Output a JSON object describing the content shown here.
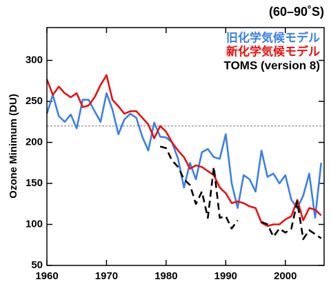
{
  "chart_data": {
    "type": "line",
    "title": "(60–90˚S)",
    "y_label": "Ozone Minimum (DU)",
    "x": [
      1960,
      1961,
      1962,
      1963,
      1964,
      1965,
      1966,
      1967,
      1968,
      1969,
      1970,
      1971,
      1972,
      1973,
      1974,
      1975,
      1976,
      1977,
      1978,
      1979,
      1980,
      1981,
      1982,
      1983,
      1984,
      1985,
      1986,
      1987,
      1988,
      1989,
      1990,
      1991,
      1992,
      1993,
      1994,
      1995,
      1996,
      1997,
      1998,
      1999,
      2000,
      2001,
      2002,
      2003,
      2004,
      2005,
      2006
    ],
    "series": [
      {
        "name": "旧化学気候モデル",
        "color": "#3a7fe8",
        "dash": false,
        "values": [
          235,
          258,
          232,
          225,
          234,
          217,
          252,
          252,
          238,
          225,
          260,
          240,
          210,
          228,
          235,
          230,
          207,
          190,
          224,
          207,
          206,
          200,
          180,
          145,
          175,
          155,
          188,
          192,
          182,
          180,
          210,
          150,
          120,
          160,
          155,
          140,
          190,
          158,
          162,
          150,
          160,
          130,
          120,
          135,
          162,
          108,
          175
        ]
      },
      {
        "name": "新化学気候モデル",
        "color": "#e81010",
        "dash": false,
        "values": [
          277,
          258,
          268,
          260,
          255,
          260,
          243,
          245,
          255,
          270,
          282,
          252,
          244,
          235,
          238,
          238,
          230,
          222,
          205,
          220,
          213,
          200,
          190,
          182,
          168,
          172,
          170,
          165,
          160,
          145,
          138,
          126,
          128,
          126,
          122,
          120,
          102,
          98,
          100,
          100,
          106,
          110,
          130,
          105,
          120,
          118,
          111
        ]
      },
      {
        "name": "TOMS (version 8)",
        "color": "#000000",
        "dash": true,
        "values": [
          null,
          null,
          null,
          null,
          null,
          null,
          null,
          null,
          null,
          null,
          null,
          null,
          null,
          null,
          null,
          null,
          null,
          null,
          null,
          195,
          193,
          178,
          170,
          155,
          148,
          125,
          140,
          108,
          170,
          108,
          110,
          95,
          105,
          null,
          null,
          null,
          103,
          100,
          85,
          95,
          90,
          95,
          128,
          82,
          93,
          88,
          83
        ]
      }
    ],
    "reference_line": 220,
    "xlim": [
      1960,
      2006.5
    ],
    "ylim": [
      50,
      340
    ],
    "xticks": [
      1960,
      1970,
      1980,
      1990,
      2000
    ],
    "yticks": [
      50,
      100,
      150,
      200,
      250,
      300
    ]
  }
}
